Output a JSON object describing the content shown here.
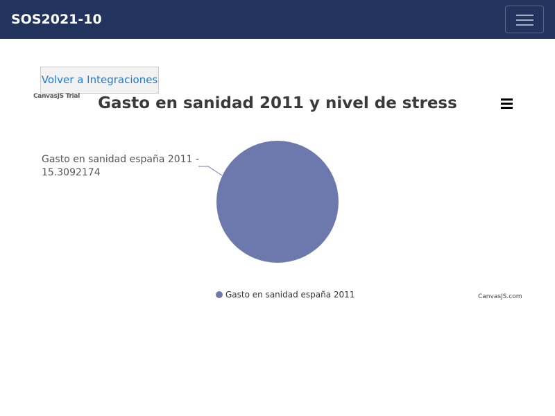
{
  "navbar": {
    "brand": "SOS2021-10"
  },
  "back_button": {
    "label": "Volver a Integraciones"
  },
  "chart_watermark": "CanvasJS Trial",
  "chart_credit": "CanvasJS.com",
  "colors": {
    "navbar": "#22345e",
    "slice": "#6d78ad",
    "link": "#1a7ad9"
  },
  "icons": {
    "menu": "hamburger-menu-icon",
    "toggler": "hamburger-icon"
  },
  "chart_data": {
    "type": "pie",
    "title": "Gasto en sanidad 2011 y nivel de stress",
    "categories": [
      "Gasto en sanidad españa 2011"
    ],
    "values": [
      15.3092174
    ],
    "index_label": "Gasto en sanidad españa 2011 - 15.3092174",
    "legend": {
      "entries": [
        "Gasto en sanidad españa 2011"
      ],
      "placement": "bottom-center"
    },
    "colors": [
      "#6d78ad"
    ]
  }
}
